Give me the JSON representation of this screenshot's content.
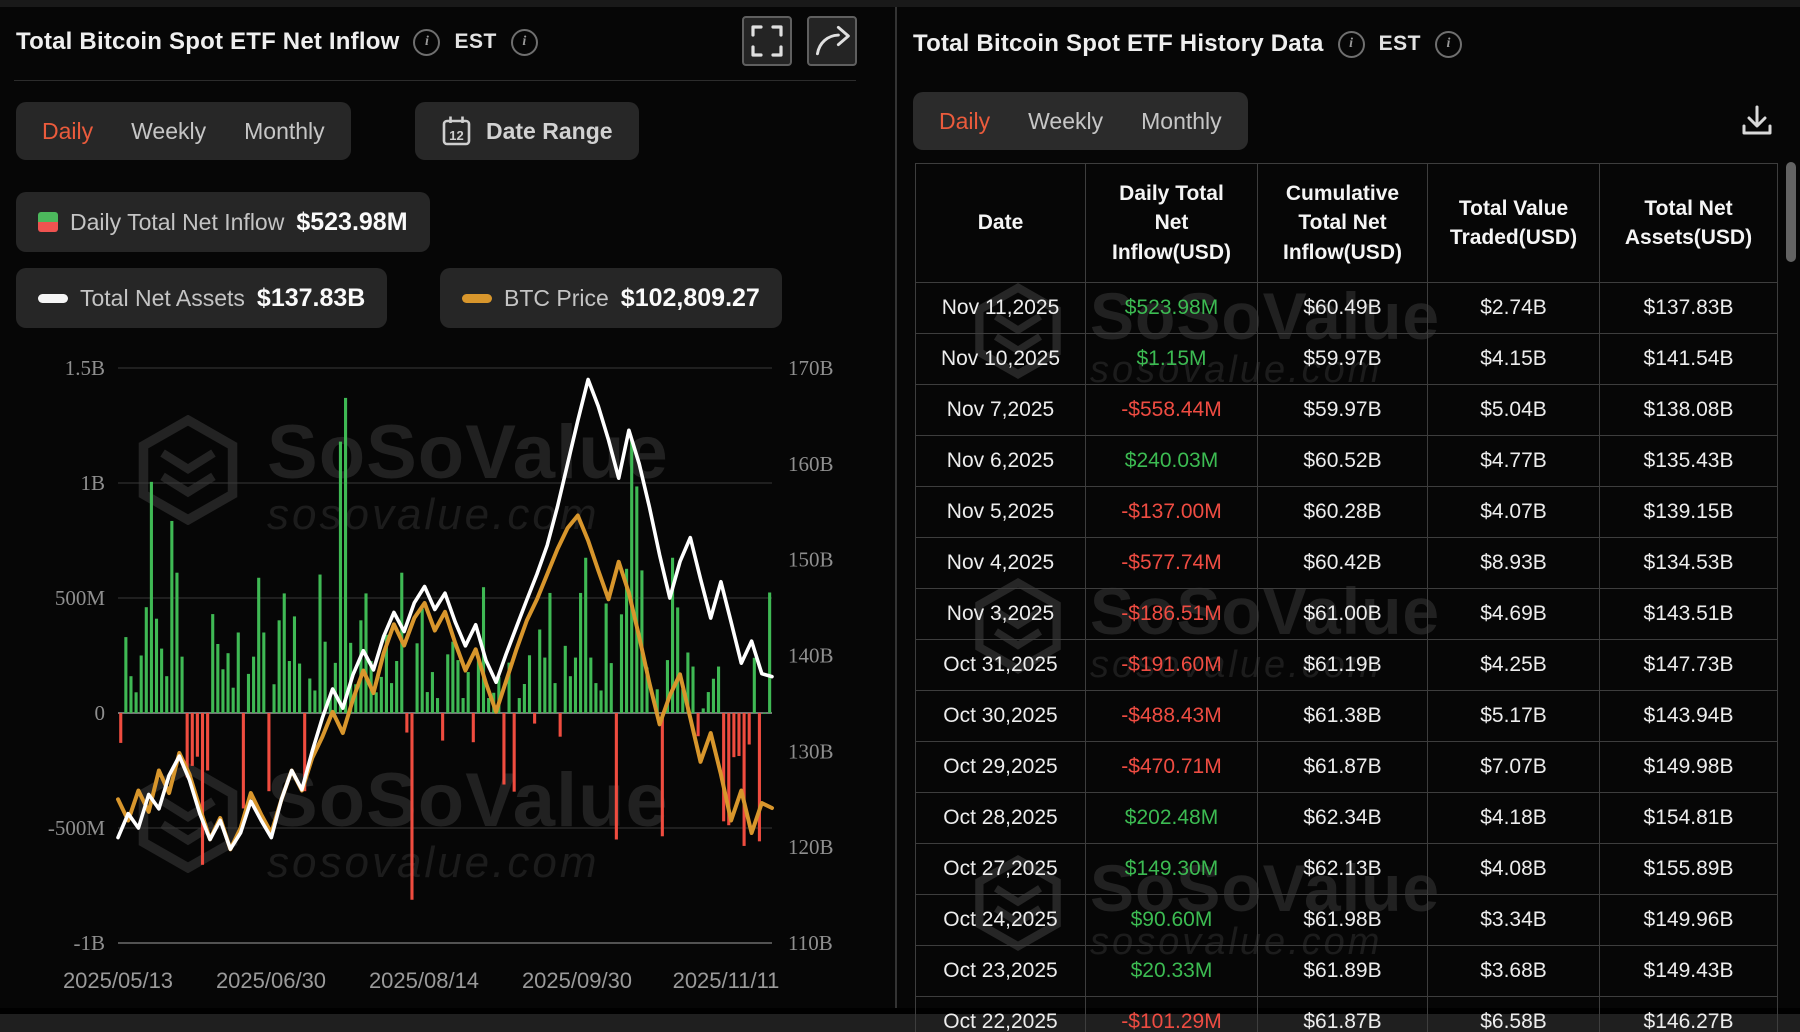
{
  "brand": {
    "watermark_text": "SoSoValue",
    "watermark_sub": "sosovalue.com"
  },
  "colors": {
    "accent_active_tab": "#EB5B3C",
    "bar_positive": "#3FB954",
    "bar_negative": "#EF4C3F",
    "assets_line": "#FFFFFF",
    "btc_line": "#D8962C",
    "table_positive": "#3CBB52",
    "table_negative": "#EF4C42"
  },
  "left_panel": {
    "title": "Total Bitcoin Spot ETF Net Inflow",
    "timezone": "EST",
    "tabs": [
      "Daily",
      "Weekly",
      "Monthly"
    ],
    "active_tab": "Daily",
    "date_range_label": "Date Range",
    "legend": [
      {
        "label": "Daily Total Net Inflow",
        "value": "$523.98M"
      },
      {
        "label": "Total Net Assets",
        "value": "$137.83B"
      },
      {
        "label": "BTC Price",
        "value": "$102,809.27"
      }
    ]
  },
  "right_panel": {
    "title": "Total Bitcoin Spot ETF History Data",
    "timezone": "EST",
    "tabs": [
      "Daily",
      "Weekly",
      "Monthly"
    ],
    "active_tab": "Daily",
    "table": {
      "headers": [
        "Date",
        "Daily Total Net Inflow(USD)",
        "Cumulative Total Net Inflow(USD)",
        "Total Value Traded(USD)",
        "Total Net Assets(USD)"
      ],
      "rows": [
        [
          "Nov 11,2025",
          "$523.98M",
          "$60.49B",
          "$2.74B",
          "$137.83B"
        ],
        [
          "Nov 10,2025",
          "$1.15M",
          "$59.97B",
          "$4.15B",
          "$141.54B"
        ],
        [
          "Nov 7,2025",
          "-$558.44M",
          "$59.97B",
          "$5.04B",
          "$138.08B"
        ],
        [
          "Nov 6,2025",
          "$240.03M",
          "$60.52B",
          "$4.77B",
          "$135.43B"
        ],
        [
          "Nov 5,2025",
          "-$137.00M",
          "$60.28B",
          "$4.07B",
          "$139.15B"
        ],
        [
          "Nov 4,2025",
          "-$577.74M",
          "$60.42B",
          "$8.93B",
          "$134.53B"
        ],
        [
          "Nov 3,2025",
          "-$186.51M",
          "$61.00B",
          "$4.69B",
          "$143.51B"
        ],
        [
          "Oct 31,2025",
          "-$191.60M",
          "$61.19B",
          "$4.25B",
          "$147.73B"
        ],
        [
          "Oct 30,2025",
          "-$488.43M",
          "$61.38B",
          "$5.17B",
          "$143.94B"
        ],
        [
          "Oct 29,2025",
          "-$470.71M",
          "$61.87B",
          "$7.07B",
          "$149.98B"
        ],
        [
          "Oct 28,2025",
          "$202.48M",
          "$62.34B",
          "$4.18B",
          "$154.81B"
        ],
        [
          "Oct 27,2025",
          "$149.30M",
          "$62.13B",
          "$4.08B",
          "$155.89B"
        ],
        [
          "Oct 24,2025",
          "$90.60M",
          "$61.98B",
          "$3.34B",
          "$149.96B"
        ],
        [
          "Oct 23,2025",
          "$20.33M",
          "$61.89B",
          "$3.68B",
          "$149.43B"
        ],
        [
          "Oct 22,2025",
          "-$101.29M",
          "$61.87B",
          "$6.58B",
          "$146.27B"
        ]
      ]
    }
  },
  "chart_data": {
    "type": "bar",
    "subtype": "mixed bar + two lines",
    "title": "Total Bitcoin Spot ETF Net Inflow (Daily)",
    "x_axis_labels": [
      "2025/05/13",
      "2025/06/30",
      "2025/08/14",
      "2025/09/30",
      "2025/11/11"
    ],
    "left_axis": {
      "labels": [
        "1.5B",
        "1B",
        "500M",
        "0",
        "-500M",
        "-1B"
      ],
      "range_millions": [
        -1000,
        1500
      ],
      "grid": true
    },
    "right_axis": {
      "labels": [
        "170B",
        "160B",
        "150B",
        "140B",
        "130B",
        "120B",
        "110B"
      ],
      "range_billions": [
        110,
        170
      ]
    },
    "legend_position": "top-left",
    "series": [
      {
        "name": "Daily Total Net Inflow",
        "type": "bar",
        "unit": "USD millions",
        "axis": "left",
        "values": [
          -130,
          330,
          160,
          90,
          250,
          460,
          1005,
          410,
          280,
          160,
          835,
          610,
          245,
          -280,
          -230,
          -190,
          -660,
          -250,
          430,
          300,
          190,
          260,
          110,
          350,
          -415,
          170,
          245,
          588,
          350,
          -340,
          125,
          403,
          520,
          226,
          420,
          215,
          -340,
          150,
          98,
          602,
          310,
          80,
          218,
          1180,
          1370,
          305,
          125,
          403,
          520,
          226,
          90,
          157,
          340,
          130,
          226,
          610,
          -85,
          -812,
          303,
          454,
          91,
          178,
          65,
          -120,
          255,
          310,
          230,
          65,
          178,
          -127,
          230,
          547,
          65,
          88,
          157,
          -311,
          219,
          -342,
          65,
          126,
          251,
          -46,
          363,
          241,
          522,
          130,
          -103,
          292,
          160,
          241,
          522,
          675,
          241,
          130,
          98,
          476,
          217,
          -550,
          429,
          627,
          1190,
          985,
          620,
          198,
          3,
          103,
          -536,
          230,
          675,
          459,
          104,
          263,
          202,
          -101,
          20,
          91,
          149,
          202,
          -471,
          -488,
          -192,
          -187,
          -578,
          -137,
          240,
          -558,
          1,
          524
        ]
      },
      {
        "name": "Total Net Assets",
        "type": "line",
        "unit": "USD billions",
        "axis": "right",
        "values": [
          121,
          123.5,
          122,
          125.5,
          124,
          127.5,
          129.5,
          127,
          123.5,
          120.8,
          122.8,
          119.8,
          121.5,
          124.8,
          122.8,
          121,
          125,
          128,
          126,
          130,
          133.5,
          136.5,
          134.5,
          138,
          140.5,
          138.5,
          142,
          144.5,
          142.5,
          145.5,
          147.2,
          144.8,
          146.5,
          143.5,
          141,
          143.2,
          139.5,
          137.2,
          140.2,
          143,
          145.8,
          148.5,
          151.5,
          155.5,
          160,
          164.5,
          168.8,
          166,
          162.5,
          158.5,
          163.5,
          160,
          155.5,
          150.5,
          146,
          149.8,
          152.3,
          148,
          143.9,
          147.7,
          143.5,
          139.2,
          141.5,
          138.1,
          137.8
        ]
      },
      {
        "name": "BTC Price",
        "type": "line",
        "unit": "USD thousands",
        "axis": "hidden",
        "scale_range_thousands": [
          92,
          138
        ],
        "values": [
          103.5,
          101.8,
          104.2,
          102.5,
          105.8,
          104,
          107.2,
          105.5,
          102.8,
          100.3,
          102,
          99.5,
          101.2,
          104,
          102.3,
          100.8,
          103.5,
          105.8,
          104.2,
          106.8,
          108.5,
          110.5,
          108.8,
          111.5,
          113.8,
          112,
          115.2,
          117.5,
          115.8,
          118,
          119.2,
          117,
          118.5,
          116,
          113.8,
          115.5,
          112.8,
          110.5,
          113,
          115.5,
          117.8,
          119.5,
          121.5,
          123.5,
          125.2,
          126.2,
          124.2,
          121.8,
          119.5,
          122.5,
          120,
          116.5,
          112.8,
          109.5,
          111.8,
          113.5,
          110,
          106.5,
          108.8,
          105.5,
          101.8,
          104.2,
          100.8,
          103.2,
          102.8
        ]
      }
    ]
  }
}
